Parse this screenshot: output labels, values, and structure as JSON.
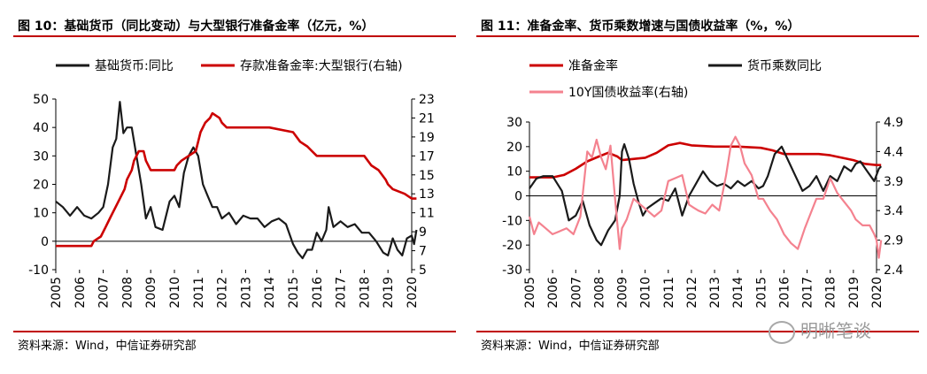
{
  "chart_data": [
    {
      "type": "line",
      "title": "图 10：基础货币（同比变动）与大型银行准备金率（亿元，%）",
      "source": "资料来源：Wind，中信证券研究部",
      "x_ticks": [
        "2005",
        "2006",
        "2007",
        "2008",
        "2009",
        "2010",
        "2011",
        "2012",
        "2013",
        "2014",
        "2015",
        "2016",
        "2017",
        "2018",
        "2019",
        "2020"
      ],
      "y_left": {
        "min": -10,
        "max": 50,
        "ticks": [
          -10,
          0,
          10,
          20,
          30,
          40,
          50
        ]
      },
      "y_right": {
        "min": 5,
        "max": 23,
        "ticks": [
          5,
          7,
          9,
          11,
          13,
          15,
          17,
          19,
          21,
          23
        ]
      },
      "legend_position": "top",
      "series": [
        {
          "name": "基础货币:同比",
          "color": "#1a1a1a",
          "axis": "left",
          "x": [
            2005.0,
            2005.3,
            2005.6,
            2005.9,
            2006.2,
            2006.5,
            2006.8,
            2007.0,
            2007.2,
            2007.4,
            2007.55,
            2007.7,
            2007.85,
            2008.0,
            2008.2,
            2008.4,
            2008.6,
            2008.8,
            2009.0,
            2009.2,
            2009.5,
            2009.8,
            2010.0,
            2010.2,
            2010.4,
            2010.6,
            2010.8,
            2011.0,
            2011.2,
            2011.4,
            2011.6,
            2011.8,
            2012.0,
            2012.3,
            2012.6,
            2012.9,
            2013.2,
            2013.5,
            2013.8,
            2014.1,
            2014.4,
            2014.7,
            2015.0,
            2015.2,
            2015.4,
            2015.6,
            2015.8,
            2016.0,
            2016.2,
            2016.4,
            2016.5,
            2016.7,
            2017.0,
            2017.3,
            2017.6,
            2017.9,
            2018.2,
            2018.5,
            2018.8,
            2019.0,
            2019.2,
            2019.4,
            2019.6,
            2019.8,
            2020.0,
            2020.1,
            2020.2
          ],
          "y": [
            14,
            12,
            9,
            12,
            9,
            8,
            10,
            12,
            20,
            33,
            36,
            49,
            38,
            40,
            40,
            30,
            20,
            8,
            12,
            5,
            4,
            14,
            16,
            12,
            24,
            30,
            33,
            30,
            20,
            16,
            12,
            12,
            8,
            10,
            6,
            9,
            8,
            8,
            5,
            7,
            8,
            6,
            -1,
            -4,
            -6,
            -3,
            -3,
            3,
            0,
            4,
            12,
            5,
            7,
            5,
            6,
            3,
            3,
            0,
            -4,
            -5,
            1,
            -3,
            -5,
            1,
            2,
            -1,
            4
          ]
        },
        {
          "name": "存款准备金率:大型银行(右轴)",
          "color": "#cc0000",
          "axis": "right",
          "x": [
            2005.0,
            2006.5,
            2006.6,
            2006.9,
            2007.1,
            2007.3,
            2007.5,
            2007.7,
            2007.9,
            2008.0,
            2008.2,
            2008.3,
            2008.5,
            2008.7,
            2008.8,
            2009.0,
            2009.5,
            2010.0,
            2010.1,
            2010.3,
            2010.6,
            2010.9,
            2011.0,
            2011.1,
            2011.3,
            2011.5,
            2011.6,
            2011.9,
            2012.0,
            2012.2,
            2012.5,
            2014.0,
            2015.0,
            2015.3,
            2015.6,
            2015.8,
            2016.0,
            2016.2,
            2018.0,
            2018.3,
            2018.6,
            2018.9,
            2019.0,
            2019.2,
            2019.7,
            2020.0,
            2020.2
          ],
          "y": [
            7.5,
            7.5,
            8.0,
            8.5,
            9.5,
            10.5,
            11.5,
            12.5,
            13.5,
            14.5,
            15.5,
            16.5,
            17.5,
            17.5,
            16.5,
            15.5,
            15.5,
            15.5,
            16.0,
            16.5,
            17.0,
            17.5,
            18.5,
            19.5,
            20.5,
            21.0,
            21.5,
            21.0,
            20.5,
            20.0,
            20.0,
            20.0,
            19.5,
            18.5,
            18.0,
            17.5,
            17.0,
            17.0,
            17.0,
            16.0,
            15.5,
            14.5,
            14.0,
            13.5,
            13.0,
            12.5,
            12.5
          ]
        }
      ]
    },
    {
      "type": "line",
      "title": "图 11：准备金率、货币乘数增速与国债收益率（%，%）",
      "source": "资料来源：Wind，中信证券研究部",
      "x_ticks": [
        "2005",
        "2006",
        "2007",
        "2008",
        "2009",
        "2010",
        "2011",
        "2012",
        "2013",
        "2014",
        "2015",
        "2016",
        "2017",
        "2018",
        "2019",
        "2020"
      ],
      "y_left": {
        "min": -30,
        "max": 30,
        "ticks": [
          -30,
          -20,
          -10,
          0,
          10,
          20,
          30
        ]
      },
      "y_right": {
        "min": 2.4,
        "max": 4.9,
        "ticks": [
          2.4,
          2.9,
          3.4,
          3.9,
          4.4,
          4.9
        ]
      },
      "legend_position": "top",
      "series": [
        {
          "name": "准备金率",
          "color": "#cc0000",
          "axis": "left",
          "x": [
            2005.0,
            2006.0,
            2006.5,
            2007.0,
            2007.5,
            2008.0,
            2008.4,
            2008.8,
            2009.0,
            2010.0,
            2010.5,
            2011.0,
            2011.5,
            2012.0,
            2013.0,
            2014.0,
            2015.0,
            2015.5,
            2016.0,
            2017.0,
            2017.5,
            2018.0,
            2018.5,
            2019.0,
            2019.5,
            2020.0,
            2020.2
          ],
          "y": [
            7.5,
            7.5,
            8.5,
            11,
            14,
            16,
            17.5,
            16,
            14.5,
            15.5,
            17.5,
            20.5,
            21.5,
            20.5,
            20,
            20,
            19.5,
            18.5,
            17,
            17,
            17,
            16.5,
            15.5,
            14.5,
            13,
            12.5,
            12.5
          ]
        },
        {
          "name": "货币乘数同比",
          "color": "#1a1a1a",
          "axis": "left",
          "x": [
            2005.0,
            2005.3,
            2005.6,
            2006.0,
            2006.4,
            2006.7,
            2007.0,
            2007.3,
            2007.6,
            2007.9,
            2008.1,
            2008.4,
            2008.7,
            2008.9,
            2009.0,
            2009.1,
            2009.3,
            2009.5,
            2009.7,
            2009.9,
            2010.1,
            2010.4,
            2010.7,
            2011.0,
            2011.3,
            2011.6,
            2011.9,
            2012.2,
            2012.5,
            2012.8,
            2013.1,
            2013.4,
            2013.7,
            2014.0,
            2014.3,
            2014.6,
            2014.9,
            2015.1,
            2015.3,
            2015.6,
            2015.9,
            2016.2,
            2016.5,
            2016.8,
            2017.1,
            2017.4,
            2017.7,
            2018.0,
            2018.3,
            2018.6,
            2018.9,
            2019.1,
            2019.3,
            2019.6,
            2019.9,
            2020.1,
            2020.2
          ],
          "y": [
            3,
            7,
            8,
            8,
            2,
            -10,
            -8,
            -2,
            -12,
            -18,
            -20,
            -14,
            -10,
            0,
            18,
            21,
            15,
            5,
            -2,
            -8,
            -5,
            -3,
            -1,
            -2,
            3,
            -8,
            0,
            5,
            10,
            6,
            4,
            5,
            3,
            6,
            4,
            6,
            3,
            4,
            8,
            17,
            20,
            14,
            8,
            2,
            4,
            8,
            2,
            8,
            6,
            12,
            10,
            13,
            14,
            10,
            6,
            11,
            12
          ]
        },
        {
          "name": "10Y国债收益率(右轴)",
          "color": "#f4828f",
          "axis": "right",
          "x": [
            2005.0,
            2005.2,
            2005.4,
            2005.7,
            2006.0,
            2006.3,
            2006.6,
            2006.9,
            2007.2,
            2007.5,
            2007.7,
            2007.9,
            2008.1,
            2008.3,
            2008.5,
            2008.7,
            2008.9,
            2009.0,
            2009.2,
            2009.5,
            2009.8,
            2010.1,
            2010.4,
            2010.7,
            2011.0,
            2011.3,
            2011.6,
            2011.9,
            2012.1,
            2012.3,
            2012.6,
            2012.9,
            2013.2,
            2013.5,
            2013.7,
            2013.9,
            2014.1,
            2014.3,
            2014.6,
            2014.9,
            2015.1,
            2015.4,
            2015.7,
            2016.0,
            2016.3,
            2016.6,
            2016.9,
            2017.1,
            2017.4,
            2017.7,
            2018.0,
            2018.3,
            2018.6,
            2018.9,
            2019.1,
            2019.4,
            2019.7,
            2019.9,
            2020.0,
            2020.1,
            2020.2
          ],
          "y": [
            3.3,
            3.0,
            3.2,
            3.1,
            3.0,
            3.05,
            3.1,
            3.0,
            3.3,
            4.4,
            4.3,
            4.6,
            4.3,
            4.1,
            4.5,
            3.6,
            2.75,
            3.1,
            3.25,
            3.6,
            3.5,
            3.4,
            3.3,
            3.4,
            3.9,
            3.95,
            4.0,
            3.5,
            3.45,
            3.4,
            3.35,
            3.5,
            3.4,
            4.0,
            4.5,
            4.65,
            4.5,
            4.2,
            4.0,
            3.6,
            3.6,
            3.4,
            3.25,
            3.0,
            2.85,
            2.75,
            3.1,
            3.3,
            3.6,
            3.6,
            3.95,
            3.7,
            3.55,
            3.4,
            3.25,
            3.15,
            3.15,
            3.0,
            2.9,
            2.6,
            2.9
          ]
        }
      ]
    }
  ],
  "watermark": {
    "text": "明晰笔谈"
  }
}
